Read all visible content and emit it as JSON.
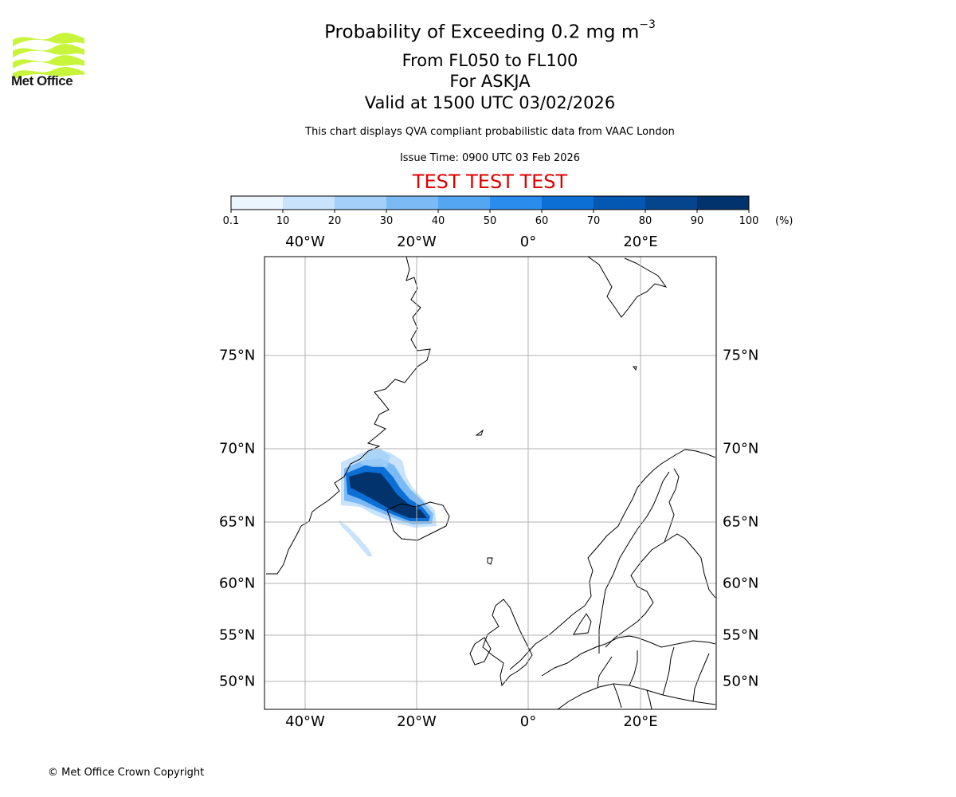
{
  "header": {
    "title_prefix": "Probability of Exceeding 0.2 mg m",
    "title_exponent": "−3",
    "flight_levels": "From FL050 to FL100",
    "volcano": "For ASKJA",
    "valid_time": "Valid at 1500 UTC 03/02/2026",
    "data_note": "This chart displays QVA compliant probabilistic data from VAAC London",
    "issue_time": "Issue Time: 0900 UTC 03 Feb 2026",
    "test_banner": "TEST TEST TEST"
  },
  "logo": {
    "text": "Met Office",
    "icon": "met-office-waves-icon",
    "color": "#c8f43c"
  },
  "colorbar": {
    "ticks": [
      "0.1",
      "10",
      "20",
      "30",
      "40",
      "50",
      "60",
      "70",
      "80",
      "90",
      "100"
    ],
    "unit": "(%)",
    "colors": [
      "#ebf5fe",
      "#c8e3fb",
      "#a3cff8",
      "#7cbaf5",
      "#55a6f2",
      "#2a8ced",
      "#0b6fd6",
      "#0558b2",
      "#04458e",
      "#03336c",
      "#032958"
    ]
  },
  "map": {
    "lon_labels": [
      "40°W",
      "20°W",
      "0°",
      "20°E"
    ],
    "lat_labels": [
      "75°N",
      "70°N",
      "65°N",
      "60°N",
      "55°N",
      "50°N"
    ],
    "copyright": "© Met Office Crown Copyright",
    "test_color": "#e00000"
  }
}
